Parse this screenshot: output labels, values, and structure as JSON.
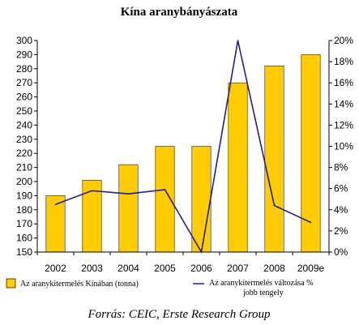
{
  "chart_data": {
    "type": "bar",
    "title": "Kína aranybányászata",
    "categories": [
      "2002",
      "2003",
      "2004",
      "2005",
      "2006",
      "2007",
      "2008",
      "2009e"
    ],
    "series": [
      {
        "name": "Az aranykitermelés Kínában (tonna)",
        "type": "bar",
        "axis": "left",
        "color": "#FFCC00",
        "values": [
          190,
          201,
          212,
          225,
          225,
          270,
          282,
          290
        ]
      },
      {
        "name": "Az aranykitermelés változása % jobb tengely",
        "type": "line",
        "axis": "right",
        "color": "#1F1F8F",
        "values": [
          4.5,
          5.8,
          5.5,
          5.9,
          0.0,
          20.0,
          4.4,
          2.8
        ]
      }
    ],
    "y_left": {
      "min": 150,
      "max": 300,
      "step": 10
    },
    "y_right": {
      "min": 0,
      "max": 20,
      "step": 2,
      "suffix": "%"
    },
    "grid": false,
    "legend_position": "bottom",
    "source": "Forrás: CEIC, Erste Research Group"
  },
  "legend": {
    "bar_label_line1": "Az aranykitermelés Kínában (tonna)",
    "line_label_line1": "Az aranykitermelés változása %",
    "line_label_line2": "jobb tengely"
  }
}
